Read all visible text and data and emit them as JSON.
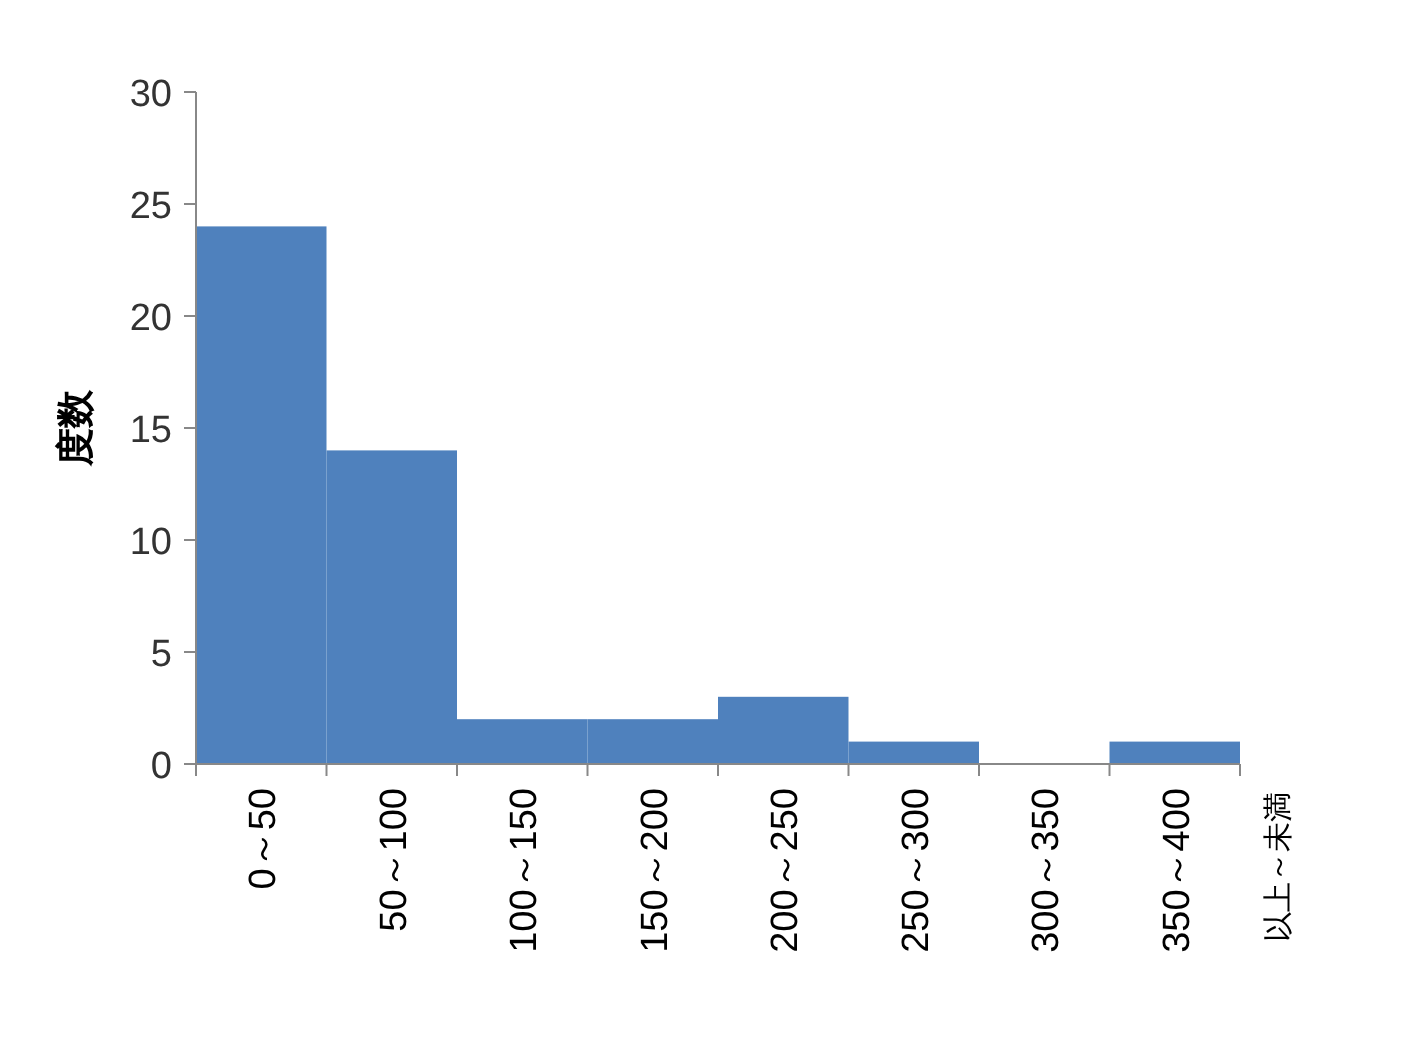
{
  "chart_data": {
    "type": "bar",
    "categories": [
      "0～50",
      "50～100",
      "100～150",
      "150～200",
      "200～250",
      "250～300",
      "300～350",
      "350～400"
    ],
    "values": [
      24,
      14,
      2,
      2,
      3,
      1,
      0,
      1
    ],
    "color": "#4f81bd",
    "ylabel": "度数",
    "annotations": [
      "以上～未満"
    ],
    "ylim": [
      0,
      30
    ],
    "yticks": [
      0,
      5,
      10,
      15,
      20,
      25,
      30
    ],
    "grid": false
  }
}
